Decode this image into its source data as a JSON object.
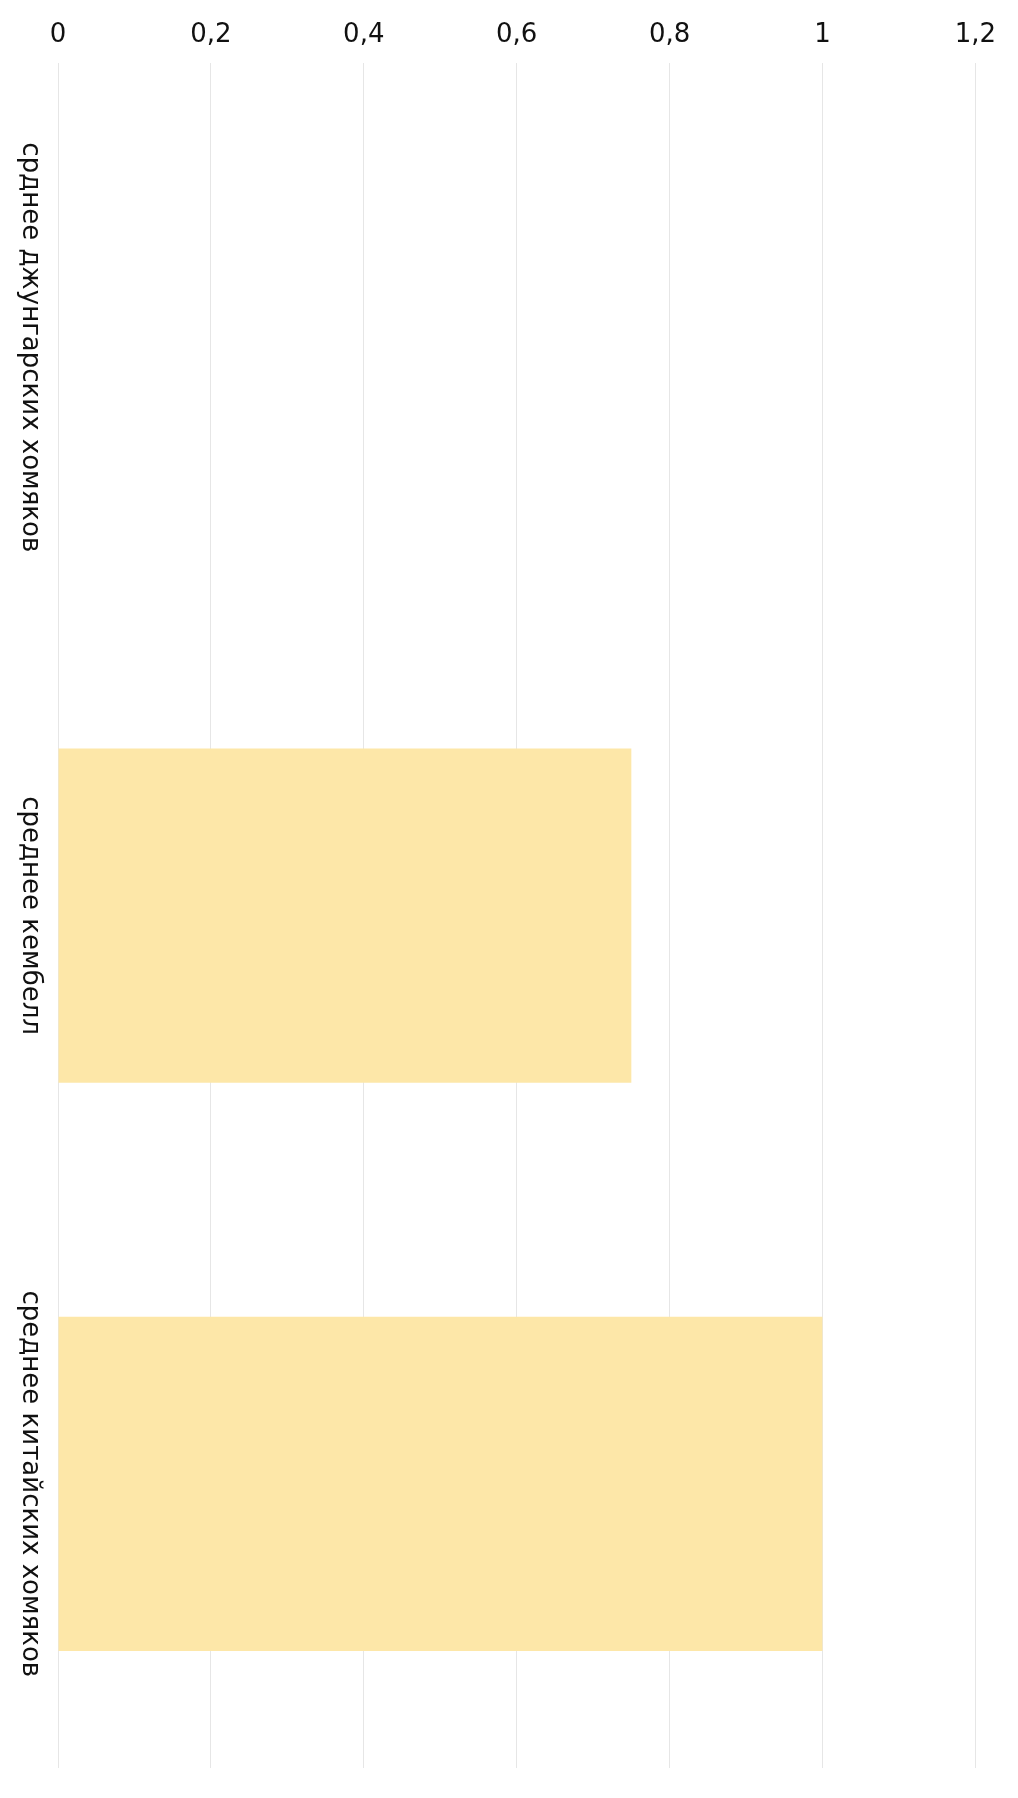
{
  "chart_data": {
    "type": "bar",
    "orientation": "horizontal",
    "categories": [
      "срднее джунгарских хомяков",
      "среднее кембелл",
      "среднее китайских хомяков"
    ],
    "values": [
      0,
      0.75,
      1
    ],
    "color": "#fde7a8",
    "xlim": [
      0,
      1.2
    ],
    "xticks": [
      0,
      {
        "value": 0.2,
        "label": "0,2"
      },
      {
        "value": 0.4,
        "label": "0,4"
      },
      {
        "value": 0.6,
        "label": "0,6"
      },
      {
        "value": 0.8,
        "label": "0,8"
      },
      1,
      {
        "value": 1.2,
        "label": "1,2"
      }
    ],
    "grid": "x"
  }
}
